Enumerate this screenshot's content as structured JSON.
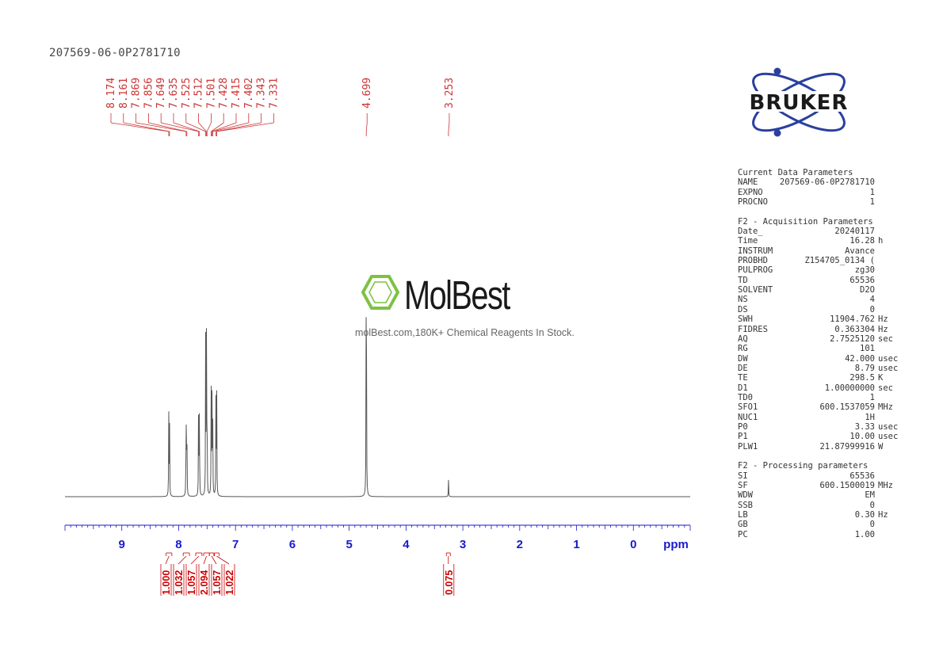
{
  "sample_id": "207569-06-0P2781710",
  "logo_text": "BRUKER",
  "watermark": {
    "brand": "MolBest",
    "tagline": "molBest.com,180K+ Chemical Reagents In Stock."
  },
  "colors": {
    "spectrum": "#555555",
    "peak_labels": "#cc3333",
    "axis": "#1a1acc",
    "integrals": "#cc0000",
    "logo_blue": "#2a3f9e",
    "watermark_green": "#7dc242"
  },
  "chart_data": {
    "type": "line",
    "title": "",
    "xlabel": "ppm",
    "ylabel": "",
    "xlim": [
      10.0,
      -1.0
    ],
    "x_reversed": true,
    "grid": false,
    "x_ticks": [
      "9",
      "8",
      "7",
      "6",
      "5",
      "4",
      "3",
      "2",
      "1",
      "0"
    ],
    "x_tick_values": [
      9,
      8,
      7,
      6,
      5,
      4,
      3,
      2,
      1,
      0
    ],
    "peak_labels": [
      "8.174",
      "8.161",
      "7.869",
      "7.856",
      "7.649",
      "7.635",
      "7.525",
      "7.512",
      "7.501",
      "7.428",
      "7.415",
      "7.402",
      "7.343",
      "7.331",
      "4.699",
      "3.253"
    ],
    "peaks": [
      {
        "ppm": 8.174,
        "height": 0.23
      },
      {
        "ppm": 8.161,
        "height": 0.23
      },
      {
        "ppm": 7.869,
        "height": 0.26
      },
      {
        "ppm": 7.856,
        "height": 0.26
      },
      {
        "ppm": 7.649,
        "height": 0.29
      },
      {
        "ppm": 7.635,
        "height": 0.29
      },
      {
        "ppm": 7.525,
        "height": 0.44
      },
      {
        "ppm": 7.512,
        "height": 0.44
      },
      {
        "ppm": 7.501,
        "height": 0.3
      },
      {
        "ppm": 7.428,
        "height": 0.29
      },
      {
        "ppm": 7.415,
        "height": 0.3
      },
      {
        "ppm": 7.402,
        "height": 0.29
      },
      {
        "ppm": 7.343,
        "height": 0.3
      },
      {
        "ppm": 7.331,
        "height": 0.3
      },
      {
        "ppm": 4.699,
        "height": 1.0
      },
      {
        "ppm": 3.253,
        "height": 0.05
      }
    ],
    "integrals": [
      {
        "value": "1.000",
        "from": 8.22,
        "to": 8.12
      },
      {
        "value": "1.032",
        "from": 7.92,
        "to": 7.81
      },
      {
        "value": "1.057",
        "from": 7.7,
        "to": 7.59
      },
      {
        "value": "2.094",
        "from": 7.56,
        "to": 7.46
      },
      {
        "value": "1.057",
        "from": 7.46,
        "to": 7.38
      },
      {
        "value": "1.022",
        "from": 7.37,
        "to": 7.29
      },
      {
        "value": "0.075",
        "from": 3.29,
        "to": 3.22
      }
    ]
  },
  "parameters": {
    "current": {
      "title": "Current Data Parameters",
      "rows": [
        {
          "k": "NAME",
          "v": "207569-06-0P2781710",
          "u": ""
        },
        {
          "k": "EXPNO",
          "v": "1",
          "u": ""
        },
        {
          "k": "PROCNO",
          "v": "1",
          "u": ""
        }
      ]
    },
    "acquisition": {
      "title": "F2 - Acquisition Parameters",
      "rows": [
        {
          "k": "Date_",
          "v": "20240117",
          "u": ""
        },
        {
          "k": "Time",
          "v": "16.28",
          "u": "h"
        },
        {
          "k": "INSTRUM",
          "v": "Avance",
          "u": ""
        },
        {
          "k": "PROBHD",
          "v": "Z154705_0134 (",
          "u": ""
        },
        {
          "k": "PULPROG",
          "v": "zg30",
          "u": ""
        },
        {
          "k": "TD",
          "v": "65536",
          "u": ""
        },
        {
          "k": "SOLVENT",
          "v": "D2O",
          "u": ""
        },
        {
          "k": "NS",
          "v": "4",
          "u": ""
        },
        {
          "k": "DS",
          "v": "0",
          "u": ""
        },
        {
          "k": "SWH",
          "v": "11904.762",
          "u": "Hz"
        },
        {
          "k": "FIDRES",
          "v": "0.363304",
          "u": "Hz"
        },
        {
          "k": "AQ",
          "v": "2.7525120",
          "u": "sec"
        },
        {
          "k": "RG",
          "v": "101",
          "u": ""
        },
        {
          "k": "DW",
          "v": "42.000",
          "u": "usec"
        },
        {
          "k": "DE",
          "v": "8.79",
          "u": "usec"
        },
        {
          "k": "TE",
          "v": "298.5",
          "u": "K"
        },
        {
          "k": "D1",
          "v": "1.00000000",
          "u": "sec"
        },
        {
          "k": "TD0",
          "v": "1",
          "u": ""
        },
        {
          "k": "SFO1",
          "v": "600.1537059",
          "u": "MHz"
        },
        {
          "k": "NUC1",
          "v": "1H",
          "u": ""
        },
        {
          "k": "P0",
          "v": "3.33",
          "u": "usec"
        },
        {
          "k": "P1",
          "v": "10.00",
          "u": "usec"
        },
        {
          "k": "PLW1",
          "v": "21.87999916",
          "u": "W"
        }
      ]
    },
    "processing": {
      "title": "F2 - Processing parameters",
      "rows": [
        {
          "k": "SI",
          "v": "65536",
          "u": ""
        },
        {
          "k": "SF",
          "v": "600.1500019",
          "u": "MHz"
        },
        {
          "k": "WDW",
          "v": "EM",
          "u": ""
        },
        {
          "k": "SSB",
          "v": "0",
          "u": ""
        },
        {
          "k": "LB",
          "v": "0.30",
          "u": "Hz"
        },
        {
          "k": "GB",
          "v": "0",
          "u": ""
        },
        {
          "k": "PC",
          "v": "1.00",
          "u": ""
        }
      ]
    }
  }
}
